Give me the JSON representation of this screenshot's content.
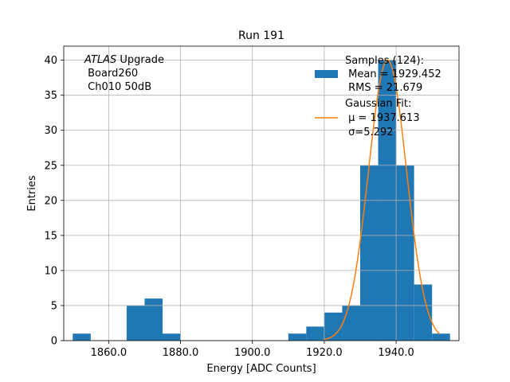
{
  "chart_data": {
    "type": "bar",
    "title": "Run 191",
    "xlabel": "Energy [ADC Counts]",
    "ylabel": "Entries",
    "xlim": [
      1847.5,
      1957.5
    ],
    "ylim": [
      0,
      42
    ],
    "xticks": [
      1860,
      1880,
      1900,
      1920,
      1940
    ],
    "xtick_labels": [
      "1860.0",
      "1880.0",
      "1900.0",
      "1920.0",
      "1940.0"
    ],
    "yticks": [
      0,
      5,
      10,
      15,
      20,
      25,
      30,
      35,
      40
    ],
    "grid": true,
    "legend_position": "top-right",
    "annotation": {
      "italic": "ATLAS",
      "line1_rest": " Upgrade",
      "line2": " Board260",
      "line3": " Ch010 50dB"
    },
    "histogram": {
      "name": "Samples (124):",
      "color": "#1f77b4",
      "bin_edges": [
        1850,
        1855,
        1860,
        1865,
        1870,
        1875,
        1880,
        1885,
        1890,
        1895,
        1900,
        1905,
        1910,
        1915,
        1920,
        1925,
        1930,
        1935,
        1940,
        1945,
        1950,
        1955
      ],
      "counts": [
        1,
        0,
        0,
        5,
        6,
        1,
        0,
        0,
        0,
        0,
        0,
        0,
        1,
        2,
        4,
        5,
        25,
        40,
        25,
        8,
        1
      ],
      "legend_lines": [
        "Samples (124):",
        " Mean = 1929.452",
        " RMS = 21.679"
      ]
    },
    "fit": {
      "name": "Gaussian Fit:",
      "color": "#ff7f0e",
      "mu": 1937.613,
      "sigma": 5.292,
      "amplitude": 40,
      "x_range": [
        1920,
        1952
      ],
      "legend_lines": [
        "Gaussian Fit:",
        " μ = 1937.613",
        " σ=5.292"
      ]
    }
  }
}
